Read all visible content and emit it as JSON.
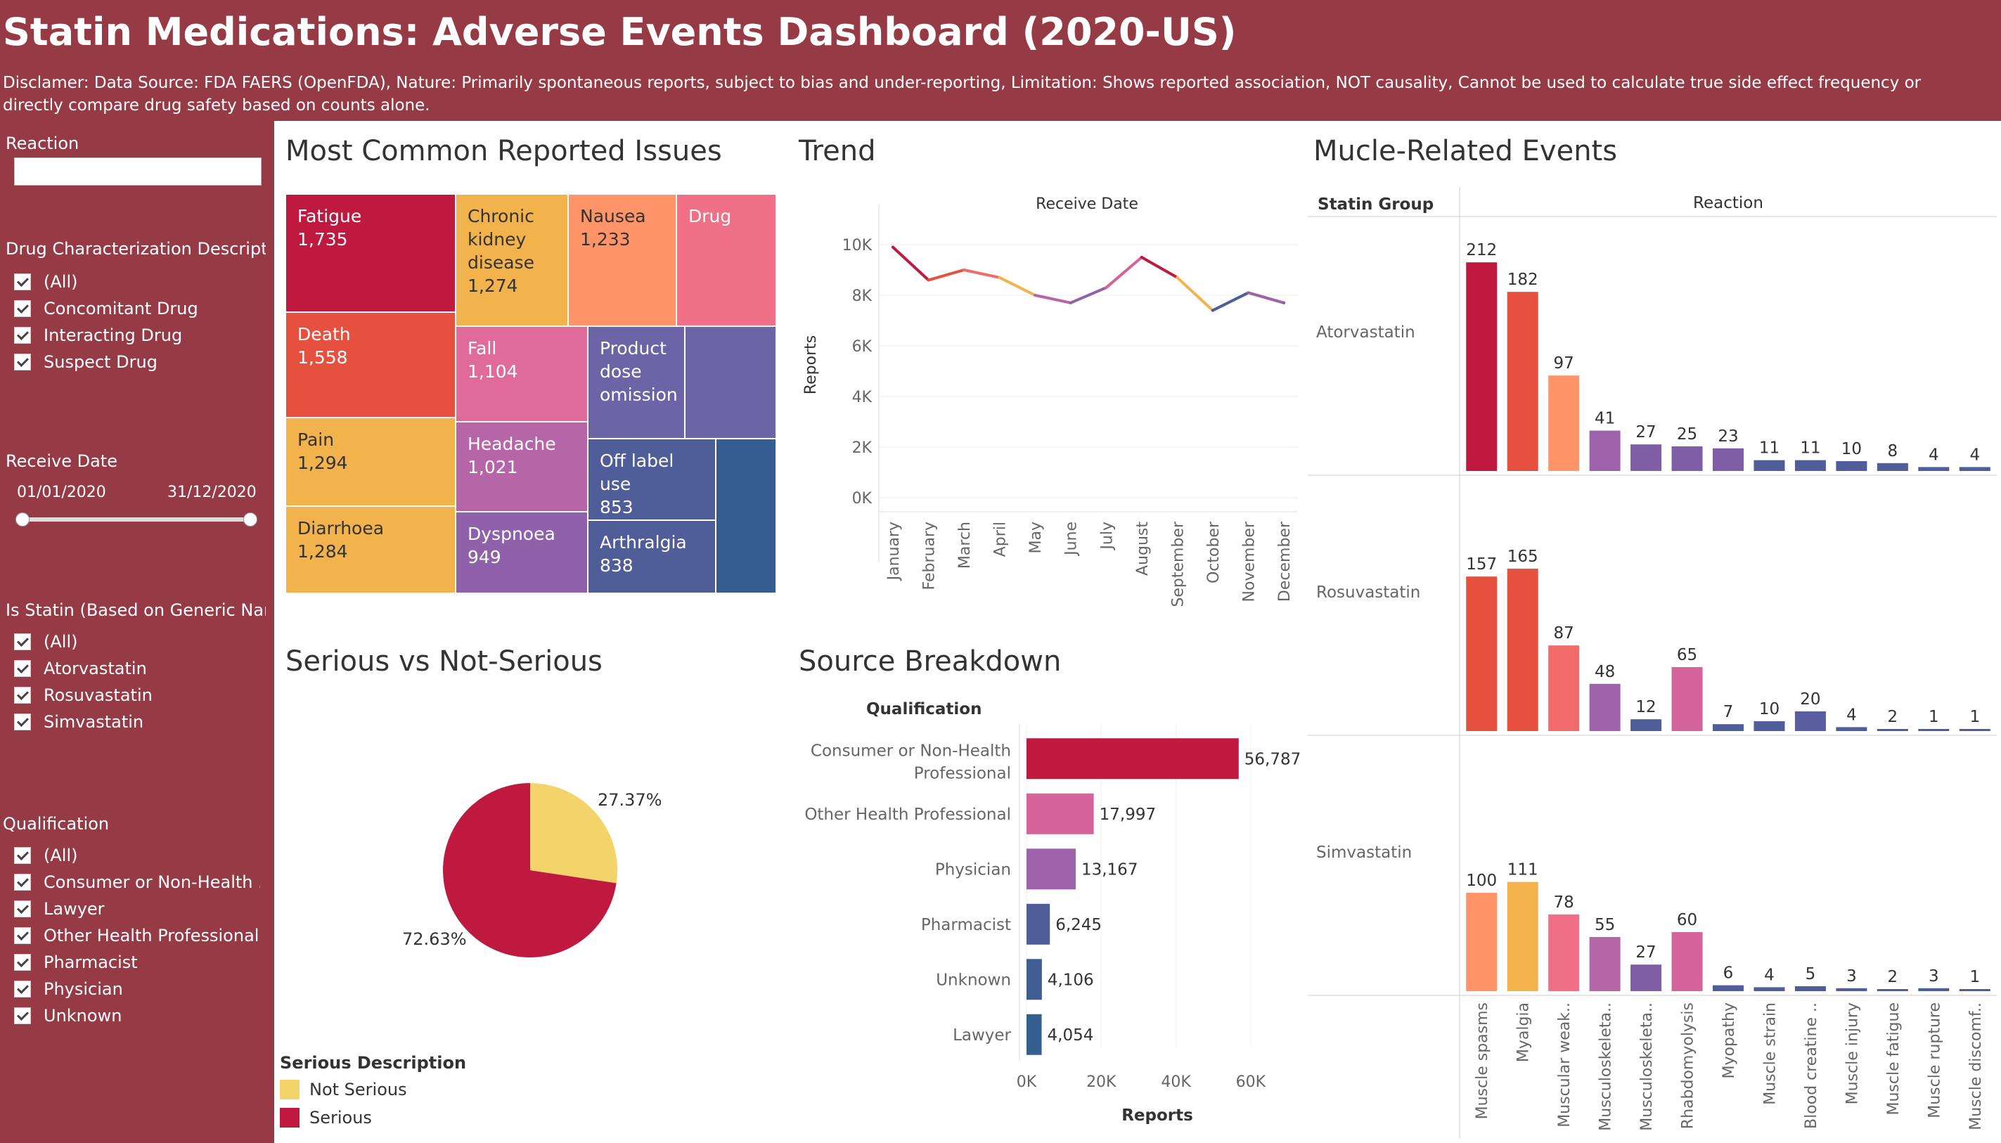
{
  "header": {
    "title": "Statin Medications: Adverse Events Dashboard (2020-US)",
    "disclaimer": "Disclamer: Data Source: FDA FAERS (OpenFDA), Nature: Primarily spontaneous reports, subject to bias and under-reporting, Limitation: Shows reported association, NOT causality, Cannot be used to calculate true side effect frequency or directly compare drug safety based on counts alone."
  },
  "sidebar": {
    "reaction_label": "Reaction",
    "reaction_value": "",
    "drug_char_title": "Drug Characterization Descript..",
    "drug_char_items": [
      "(All)",
      "Concomitant Drug",
      "Interacting Drug",
      "Suspect Drug"
    ],
    "receive_date_title": "Receive Date",
    "date_start": "01/01/2020",
    "date_end": "31/12/2020",
    "statin_title": "Is Statin (Based on Generic Nam..",
    "statin_items": [
      "(All)",
      "Atorvastatin",
      "Rosuvastatin",
      "Simvastatin"
    ],
    "qualification_title": "Qualification",
    "qualification_items": [
      "(All)",
      "Consumer or Non-Health ...",
      "Lawyer",
      "Other Health Professional",
      "Pharmacist",
      "Physician",
      "Unknown"
    ]
  },
  "panels": {
    "treemap_title": "Most Common Reported Issues",
    "trend_title": "Trend",
    "pie_title": "Serious vs Not-Serious",
    "source_title": "Source Breakdown",
    "muscle_title": "Mucle-Related Events"
  },
  "colors": {
    "header_bg": "#963b45",
    "serious": "#c0193f",
    "not_serious": "#f3d46a"
  },
  "chart_data": [
    {
      "type": "treemap",
      "cells": [
        {
          "label": "Fatigue",
          "value": "1,735",
          "color": "#c0193f"
        },
        {
          "label": "Chronic kidney disease",
          "value": "1,274",
          "color": "#f2b24c"
        },
        {
          "label": "Nausea",
          "value": "1,233",
          "color": "#fe9467"
        },
        {
          "label": "Drug",
          "value": "",
          "color": "#ef7087"
        },
        {
          "label": "Death",
          "value": "1,558",
          "color": "#e5503f"
        },
        {
          "label": "Fall",
          "value": "1,104",
          "color": "#e06a9a"
        },
        {
          "label": "Product dose omission",
          "value": "",
          "color": "#6b65a8"
        },
        {
          "label": "",
          "value": "",
          "color": "#6b65a8"
        },
        {
          "label": "Pain",
          "value": "1,294",
          "color": "#f2b24c"
        },
        {
          "label": "Headache",
          "value": "1,021",
          "color": "#b565a8"
        },
        {
          "label": "Off label use",
          "value": "853",
          "color": "#4f5d99"
        },
        {
          "label": "",
          "value": "",
          "color": "#365d92"
        },
        {
          "label": "Diarrhoea",
          "value": "1,284",
          "color": "#f2b24c"
        },
        {
          "label": "Dyspnoea",
          "value": "949",
          "color": "#8f61ab"
        },
        {
          "label": "Arthralgia",
          "value": "838",
          "color": "#4f5d99"
        }
      ]
    },
    {
      "type": "line",
      "title": "Receive Date",
      "ylabel": "Reports",
      "categories": [
        "January",
        "February",
        "March",
        "April",
        "May",
        "June",
        "July",
        "August",
        "September",
        "October",
        "November",
        "December"
      ],
      "values": [
        9900,
        8600,
        9000,
        8700,
        8000,
        7700,
        8300,
        9500,
        8700,
        7400,
        8100,
        7700
      ],
      "yticks": [
        "0K",
        "2K",
        "4K",
        "6K",
        "8K",
        "10K"
      ],
      "ylim": [
        0,
        10500
      ]
    },
    {
      "type": "pie",
      "slices": [
        {
          "name": "Not Serious",
          "value": 27.37,
          "label": "27.37%",
          "color": "#f3d46a"
        },
        {
          "name": "Serious",
          "value": 72.63,
          "label": "72.63%",
          "color": "#c0193f"
        }
      ],
      "legend_title": "Serious Description"
    },
    {
      "type": "bar",
      "orientation": "horizontal",
      "ytitle": "Qualification",
      "xlabel": "Reports",
      "categories": [
        "Consumer or Non-Health Professional",
        "Other Health Professional",
        "Physician",
        "Pharmacist",
        "Unknown",
        "Lawyer"
      ],
      "values": [
        56787,
        17997,
        13167,
        6245,
        4106,
        4054
      ],
      "value_labels": [
        "56,787",
        "17,997",
        "13,167",
        "6,245",
        "4,106",
        "4,054"
      ],
      "colors": [
        "#c0193f",
        "#d4649a",
        "#9e62ab",
        "#4f5d99",
        "#3e5e93",
        "#34608f"
      ],
      "xticks": [
        "0K",
        "20K",
        "40K",
        "60K"
      ],
      "xlim": [
        0,
        70000
      ]
    },
    {
      "type": "bar",
      "orientation": "vertical",
      "row_header": "Statin Group",
      "col_header": "Reaction",
      "categories": [
        "Muscle spasms",
        "Myalgia",
        "Muscular weak..",
        "Musculoskeleta..",
        "Musculoskeleta..",
        "Rhabdomyolysis",
        "Myopathy",
        "Muscle strain",
        "Blood creatine ..",
        "Muscle injury",
        "Muscle fatigue",
        "Muscle rupture",
        "Muscle discomf.."
      ],
      "groups": [
        {
          "name": "Atorvastatin",
          "values": [
            212,
            182,
            97,
            41,
            27,
            25,
            23,
            11,
            11,
            10,
            8,
            4,
            4
          ],
          "colors": [
            "#c0193f",
            "#e5503f",
            "#fe9467",
            "#9e62ab",
            "#7e5fa6",
            "#7e5fa6",
            "#7e5fa6",
            "#4f5d99",
            "#4f5d99",
            "#4f5d99",
            "#4f5d99",
            "#4f5d99",
            "#4f5d99"
          ]
        },
        {
          "name": "Rosuvastatin",
          "values": [
            157,
            165,
            87,
            48,
            12,
            65,
            7,
            10,
            20,
            4,
            2,
            1,
            1
          ],
          "colors": [
            "#e5503f",
            "#e5503f",
            "#f26b6b",
            "#9e62ab",
            "#4f5d99",
            "#d4649a",
            "#4f5d99",
            "#4f5d99",
            "#5a5ea1",
            "#4f5d99",
            "#4f5d99",
            "#4f5d99",
            "#4f5d99"
          ]
        },
        {
          "name": "Simvastatin",
          "values": [
            100,
            111,
            78,
            55,
            27,
            60,
            6,
            4,
            5,
            3,
            2,
            3,
            1
          ],
          "colors": [
            "#fe9467",
            "#f2b24c",
            "#ef7087",
            "#b565a8",
            "#7e5fa6",
            "#d4649a",
            "#4f5d99",
            "#4f5d99",
            "#4f5d99",
            "#4f5d99",
            "#4f5d99",
            "#4f5d99",
            "#4f5d99"
          ]
        }
      ]
    }
  ]
}
